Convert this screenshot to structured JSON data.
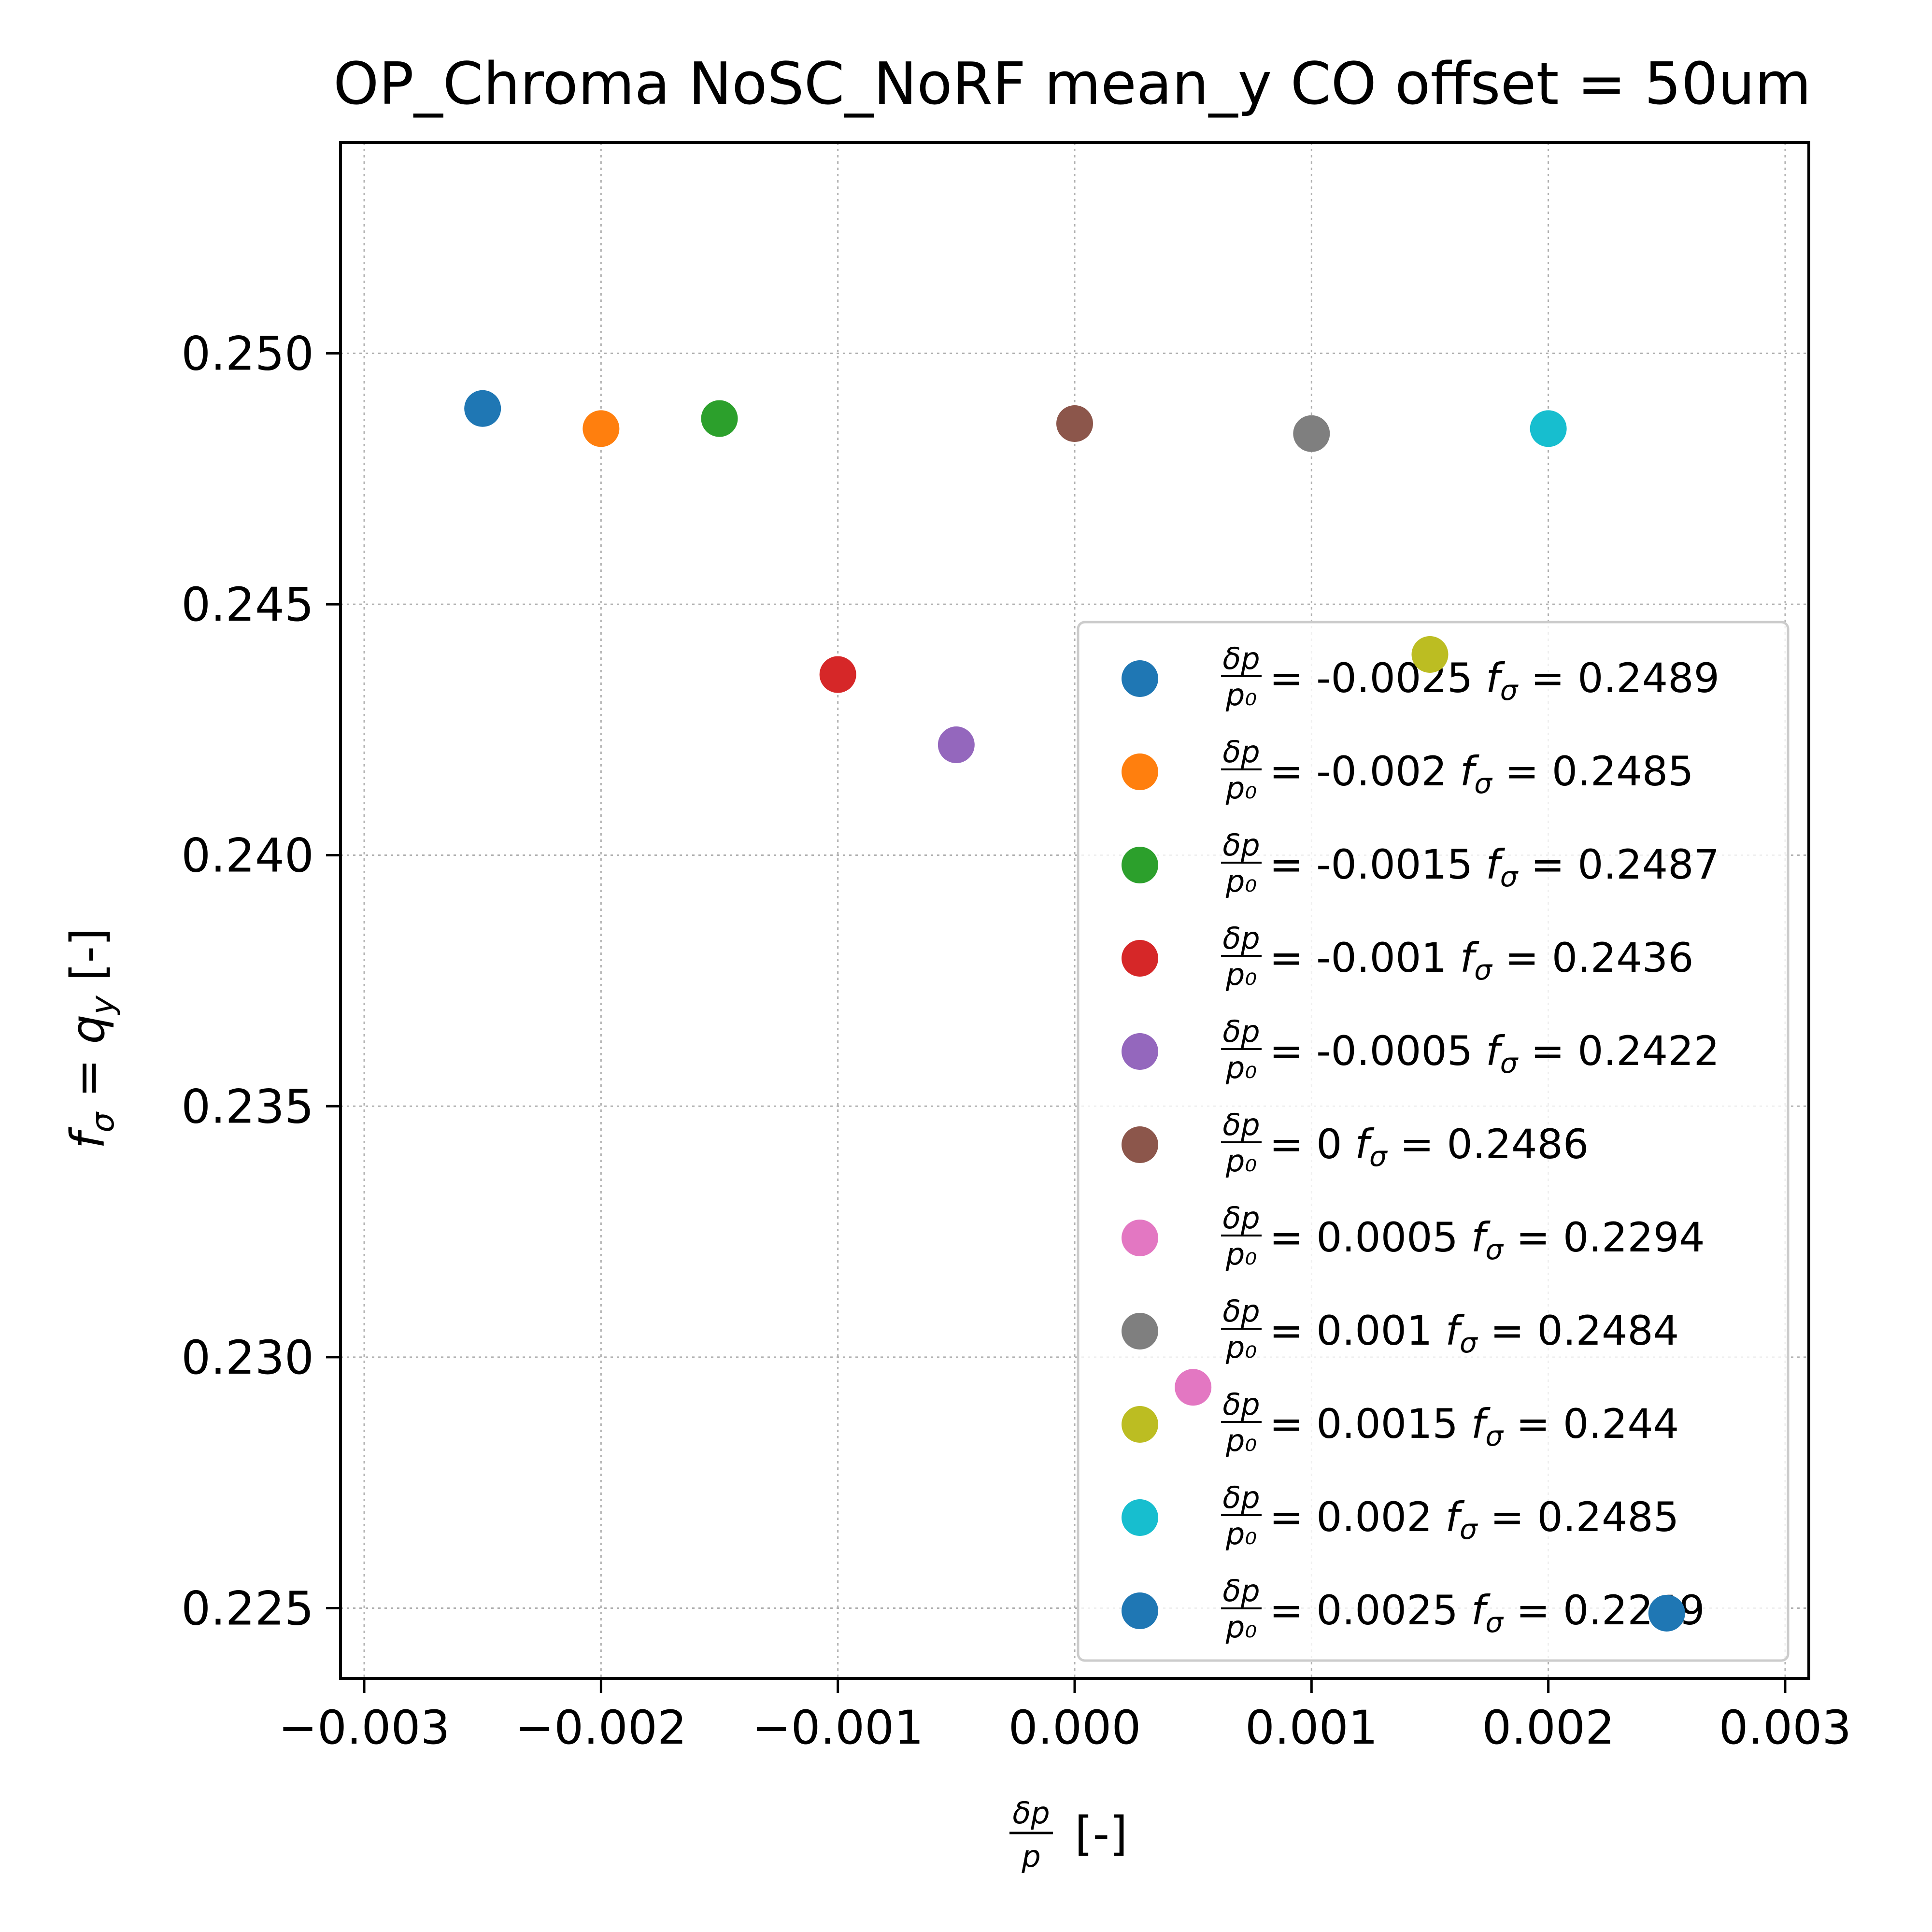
{
  "chart_data": {
    "type": "scatter",
    "title": "OP_Chroma NoSC_NoRF mean_y CO offset = 50um",
    "xlabel": {
      "frac_num": "δp",
      "frac_den": "p",
      "suffix": "[-]"
    },
    "ylabel": {
      "f": "f",
      "sub": "σ",
      "eq": " = ",
      "q": "q",
      "qsub": "y",
      "suffix": " [-]"
    },
    "xlim": [
      -0.0031,
      0.0031
    ],
    "ylim": [
      0.2236,
      0.2542
    ],
    "xticks": [
      -0.003,
      -0.002,
      -0.001,
      0.0,
      0.001,
      0.002,
      0.003
    ],
    "xtick_labels": [
      "−0.003",
      "−0.002",
      "−0.001",
      "0.000",
      "0.001",
      "0.002",
      "0.003"
    ],
    "yticks": [
      0.225,
      0.23,
      0.235,
      0.24,
      0.245,
      0.25
    ],
    "ytick_labels": [
      "0.225",
      "0.230",
      "0.235",
      "0.240",
      "0.245",
      "0.250"
    ],
    "grid": true,
    "legend_position": "lower-right",
    "series": [
      {
        "dp": "-0.0025",
        "fs": "0.2489",
        "x": -0.0025,
        "y": 0.2489,
        "color": "#1f77b4"
      },
      {
        "dp": "-0.002",
        "fs": "0.2485",
        "x": -0.002,
        "y": 0.2485,
        "color": "#ff7f0e"
      },
      {
        "dp": "-0.0015",
        "fs": "0.2487",
        "x": -0.0015,
        "y": 0.2487,
        "color": "#2ca02c"
      },
      {
        "dp": "-0.001",
        "fs": "0.2436",
        "x": -0.001,
        "y": 0.2436,
        "color": "#d62728"
      },
      {
        "dp": "-0.0005",
        "fs": "0.2422",
        "x": -0.0005,
        "y": 0.2422,
        "color": "#9467bd"
      },
      {
        "dp": "0",
        "fs": "0.2486",
        "x": 0.0,
        "y": 0.2486,
        "color": "#8c564b"
      },
      {
        "dp": "0.0005",
        "fs": "0.2294",
        "x": 0.0005,
        "y": 0.2294,
        "color": "#e377c2"
      },
      {
        "dp": "0.001",
        "fs": "0.2484",
        "x": 0.001,
        "y": 0.2484,
        "color": "#7f7f7f"
      },
      {
        "dp": "0.0015",
        "fs": "0.244",
        "x": 0.0015,
        "y": 0.244,
        "color": "#bcbd22"
      },
      {
        "dp": "0.002",
        "fs": "0.2485",
        "x": 0.002,
        "y": 0.2485,
        "color": "#17becf"
      },
      {
        "dp": "0.0025",
        "fs": "0.2249",
        "x": 0.0025,
        "y": 0.2249,
        "color": "#1f77b4"
      }
    ]
  }
}
